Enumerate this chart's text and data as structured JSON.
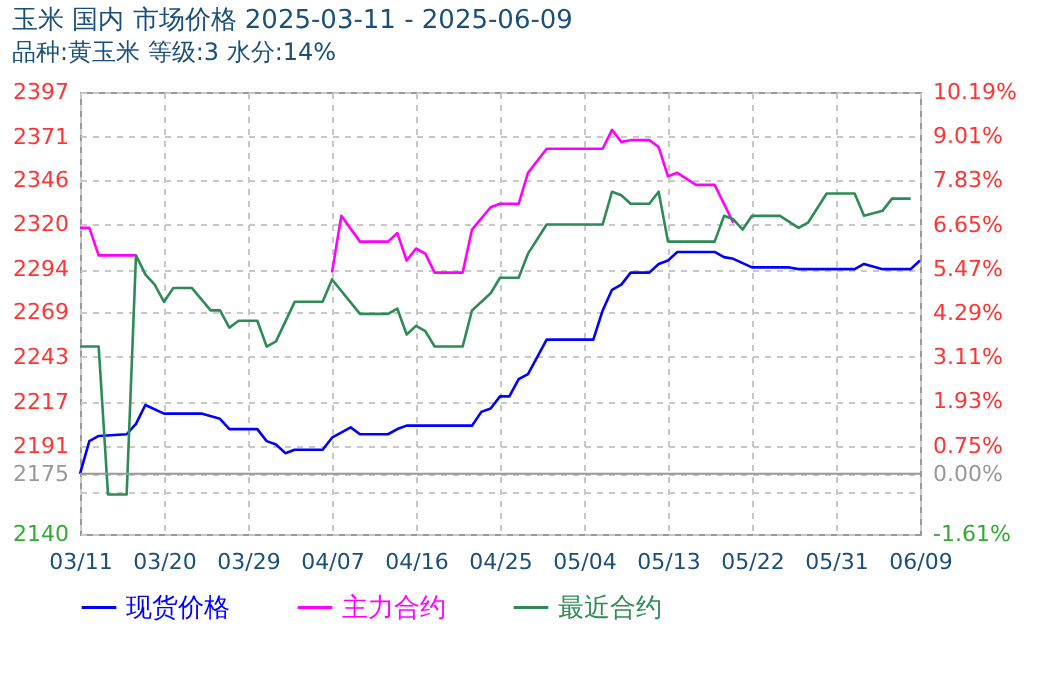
{
  "chart_data": {
    "type": "line",
    "title": "玉米 国内 市场价格 2025-03-11 - 2025-06-09",
    "subtitle": "品种:黄玉米 等级:3 水分:14%",
    "series": [
      {
        "name": "现货价格",
        "color": "#0000ff",
        "x": [
          "2025-03-11",
          "2025-03-12",
          "2025-03-13",
          "2025-03-16",
          "2025-03-17",
          "2025-03-18",
          "2025-03-20",
          "2025-03-24",
          "2025-03-26",
          "2025-03-27",
          "2025-03-30",
          "2025-03-31",
          "2025-04-01",
          "2025-04-02",
          "2025-04-03",
          "2025-04-06",
          "2025-04-07",
          "2025-04-09",
          "2025-04-10",
          "2025-04-13",
          "2025-04-14",
          "2025-04-15",
          "2025-04-22",
          "2025-04-23",
          "2025-04-24",
          "2025-04-25",
          "2025-04-26",
          "2025-04-27",
          "2025-04-28",
          "2025-04-30",
          "2025-05-05",
          "2025-05-06",
          "2025-05-07",
          "2025-05-08",
          "2025-05-09",
          "2025-05-11",
          "2025-05-12",
          "2025-05-13",
          "2025-05-14",
          "2025-05-18",
          "2025-05-19",
          "2025-05-20",
          "2025-05-22",
          "2025-05-26",
          "2025-05-27",
          "2025-06-02",
          "2025-06-03",
          "2025-06-05",
          "2025-06-08",
          "2025-06-09"
        ],
        "values": [
          2175,
          2194,
          2197,
          2198,
          2204,
          2215,
          2210,
          2210,
          2207,
          2201,
          2201,
          2194,
          2192,
          2187,
          2189,
          2189,
          2196,
          2202,
          2198,
          2198,
          2201,
          2203,
          2203,
          2211,
          2213,
          2220,
          2220,
          2230,
          2233,
          2253,
          2253,
          2270,
          2282,
          2285,
          2292,
          2292,
          2297,
          2299,
          2304,
          2304,
          2301,
          2300,
          2295,
          2295,
          2294,
          2294,
          2297,
          2294,
          2294,
          2299
        ]
      },
      {
        "name": "主力合约",
        "color": "#ff00ff",
        "x": [
          "2025-03-11",
          "2025-03-12",
          "2025-03-13",
          "2025-03-17",
          "2025-03-26",
          "2025-04-07",
          "2025-04-08",
          "2025-04-10",
          "2025-04-13",
          "2025-04-14",
          "2025-04-15",
          "2025-04-16",
          "2025-04-17",
          "2025-04-18",
          "2025-04-21",
          "2025-04-22",
          "2025-04-24",
          "2025-04-25",
          "2025-04-27",
          "2025-04-28",
          "2025-04-30",
          "2025-05-06",
          "2025-05-07",
          "2025-05-08",
          "2025-05-09",
          "2025-05-11",
          "2025-05-12",
          "2025-05-13",
          "2025-05-14",
          "2025-05-16",
          "2025-05-18",
          "2025-05-20"
        ],
        "values": [
          2318,
          2318,
          2302,
          2302,
          null,
          2292,
          2325,
          2310,
          2310,
          2315,
          2299,
          2306,
          2303,
          2292,
          2292,
          2317,
          2330,
          2332,
          2332,
          2350,
          2364,
          2364,
          2375,
          2368,
          2369,
          2369,
          2365,
          2348,
          2350,
          2343,
          2343,
          2321
        ]
      },
      {
        "name": "最近合约",
        "color": "#2e8b57",
        "x": [
          "2025-03-11",
          "2025-03-13",
          "2025-03-14",
          "2025-03-16",
          "2025-03-17",
          "2025-03-18",
          "2025-03-19",
          "2025-03-20",
          "2025-03-21",
          "2025-03-23",
          "2025-03-25",
          "2025-03-26",
          "2025-03-27",
          "2025-03-28",
          "2025-03-30",
          "2025-03-31",
          "2025-04-01",
          "2025-04-03",
          "2025-04-06",
          "2025-04-07",
          "2025-04-10",
          "2025-04-13",
          "2025-04-14",
          "2025-04-15",
          "2025-04-16",
          "2025-04-17",
          "2025-04-18",
          "2025-04-21",
          "2025-04-22",
          "2025-04-24",
          "2025-04-25",
          "2025-04-27",
          "2025-04-28",
          "2025-04-30",
          "2025-05-06",
          "2025-05-07",
          "2025-05-08",
          "2025-05-09",
          "2025-05-11",
          "2025-05-12",
          "2025-05-13",
          "2025-05-18",
          "2025-05-19",
          "2025-05-20",
          "2025-05-21",
          "2025-05-22",
          "2025-05-25",
          "2025-05-27",
          "2025-05-28",
          "2025-05-30",
          "2025-06-02",
          "2025-06-03",
          "2025-06-05",
          "2025-06-06",
          "2025-06-08"
        ],
        "values": [
          2249,
          2249,
          2163,
          2163,
          2302,
          2291,
          2285,
          2275,
          2283,
          2283,
          2270,
          2270,
          2260,
          2264,
          2264,
          2249,
          2252,
          2275,
          2275,
          2288,
          2268,
          2268,
          2271,
          2256,
          2261,
          2258,
          2249,
          2249,
          2270,
          2280,
          2289,
          2289,
          2303,
          2320,
          2320,
          2339,
          2337,
          2332,
          2332,
          2339,
          2310,
          2310,
          2325,
          2323,
          2317,
          2325,
          2325,
          2318,
          2321,
          2338,
          2338,
          2325,
          2328,
          2335,
          2335
        ]
      }
    ],
    "xlim": [
      "2025-03-11",
      "2025-06-09"
    ],
    "xticks": [
      {
        "value": "2025-03-11",
        "label": "03/11"
      },
      {
        "value": "2025-03-20",
        "label": "03/20"
      },
      {
        "value": "2025-03-29",
        "label": "03/29"
      },
      {
        "value": "2025-04-07",
        "label": "04/07"
      },
      {
        "value": "2025-04-16",
        "label": "04/16"
      },
      {
        "value": "2025-04-25",
        "label": "04/25"
      },
      {
        "value": "2025-05-04",
        "label": "05/04"
      },
      {
        "value": "2025-05-13",
        "label": "05/13"
      },
      {
        "value": "2025-05-22",
        "label": "05/22"
      },
      {
        "value": "2025-05-31",
        "label": "05/31"
      },
      {
        "value": "2025-06-09",
        "label": "06/09"
      }
    ],
    "ylim": [
      2140,
      2397
    ],
    "yticks": [
      2140,
      {
        "value": 2165,
        "label": null
      },
      2175,
      2191,
      2217,
      2243,
      2269,
      2294,
      2320,
      2346,
      2371,
      2397
    ],
    "y2lim": [
      -1.61,
      10.19
    ],
    "y2ticks": [
      {
        "value": -1.61,
        "label": "-1.61%"
      },
      {
        "value": 0,
        "label": "0.00%"
      },
      {
        "value": 0.75,
        "label": "0.75%"
      },
      {
        "value": 1.93,
        "label": "1.93%"
      },
      {
        "value": 3.11,
        "label": "3.11%"
      },
      {
        "value": 4.29,
        "label": "4.29%"
      },
      {
        "value": 5.47,
        "label": "5.47%"
      },
      {
        "value": 6.65,
        "label": "6.65%"
      },
      {
        "value": 7.83,
        "label": "7.83%"
      },
      {
        "value": 9.01,
        "label": "9.01%"
      },
      {
        "value": 10.19,
        "label": "10.19%"
      }
    ],
    "ref_lines": [
      {
        "axis": "y",
        "value": 2175,
        "color": "#999999"
      }
    ],
    "grid": true,
    "legend": "bottom"
  }
}
